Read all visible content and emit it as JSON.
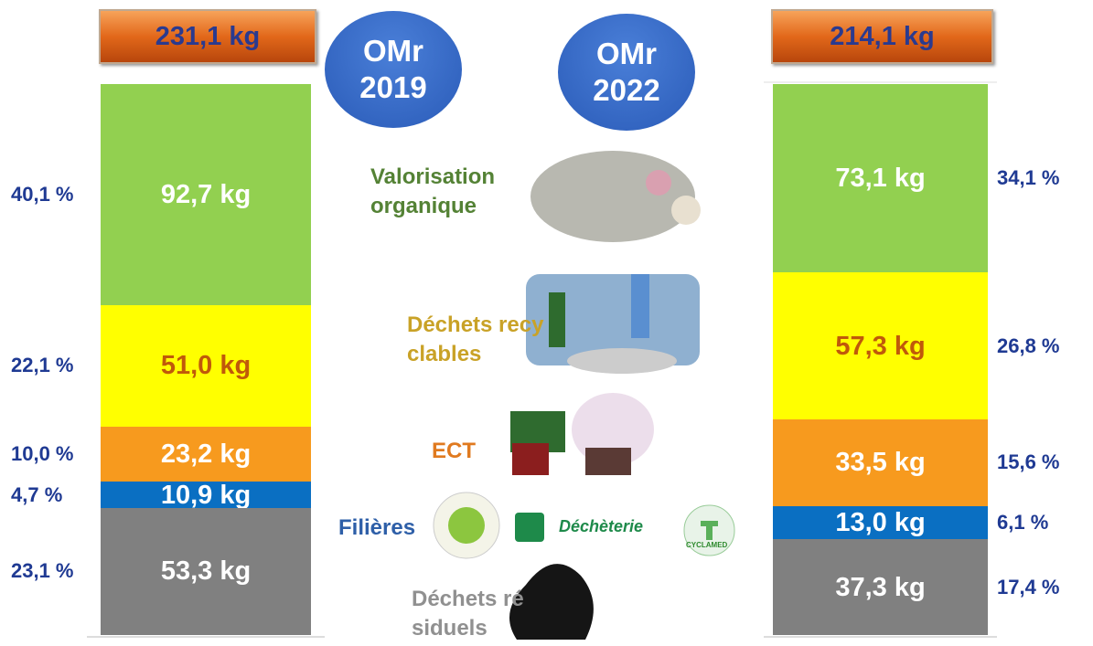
{
  "chart_data": {
    "type": "stacked_bar",
    "categories": [
      "OMr 2019",
      "OMr 2022"
    ],
    "totals": [
      231.1,
      214.1
    ],
    "total_labels": [
      "231,1 kg",
      "214,1 kg"
    ],
    "series": [
      {
        "name": "Valorisation organique",
        "color": "#92d050",
        "values": [
          92.7,
          73.1
        ],
        "value_labels": [
          "92,7 kg",
          "73,1 kg"
        ],
        "percents": [
          40.1,
          34.1
        ],
        "percent_labels": [
          "40,1 %",
          "34,1 %"
        ]
      },
      {
        "name": "Déchets recyclables",
        "color": "#ffff00",
        "values": [
          51.0,
          57.3
        ],
        "value_labels": [
          "51,0 kg",
          "57,3 kg"
        ],
        "percents": [
          22.1,
          26.8
        ],
        "percent_labels": [
          "22,1 %",
          "26,8 %"
        ]
      },
      {
        "name": "ECT",
        "color": "#f79a1e",
        "values": [
          23.2,
          33.5
        ],
        "value_labels": [
          "23,2 kg",
          "33,5 kg"
        ],
        "percents": [
          10.0,
          15.6
        ],
        "percent_labels": [
          "10,0 %",
          "15,6 %"
        ]
      },
      {
        "name": "Filières",
        "color": "#0a6fc2",
        "values": [
          10.9,
          13.0
        ],
        "value_labels": [
          "10,9 kg",
          "13,0 kg"
        ],
        "percents": [
          4.7,
          6.1
        ],
        "percent_labels": [
          "4,7 %",
          "6,1 %"
        ]
      },
      {
        "name": "Déchets résiduels",
        "color": "#808080",
        "values": [
          53.3,
          37.3
        ],
        "value_labels": [
          "53,3 kg",
          "37,3 kg"
        ],
        "percents": [
          23.1,
          17.4
        ],
        "percent_labels": [
          "23,1 %",
          "17,4 %"
        ]
      }
    ],
    "logos": [
      "Déchèterie",
      "CYCLAMED"
    ]
  }
}
